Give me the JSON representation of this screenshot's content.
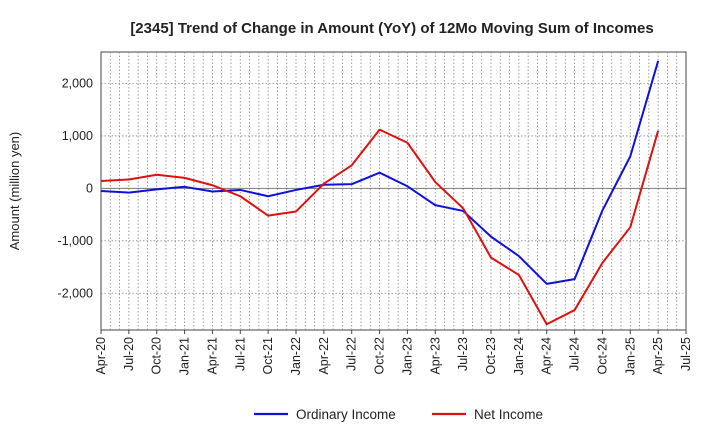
{
  "chart_data": {
    "type": "line",
    "title": "[2345]  Trend of Change in Amount (YoY) of 12Mo Moving Sum of Incomes",
    "xlabel": "",
    "ylabel": "Amount (million yen)",
    "ylim": [
      -2700,
      2600
    ],
    "y_ticks": [
      2000,
      1000,
      0,
      -1000,
      -2000
    ],
    "y_tick_labels": [
      "2,000",
      "1,000",
      "0",
      "-1,000",
      "-2,000"
    ],
    "x_tick_labels": [
      "Apr-20",
      "Jul-20",
      "Oct-20",
      "Jan-21",
      "Apr-21",
      "Jul-21",
      "Oct-21",
      "Jan-22",
      "Apr-22",
      "Jul-22",
      "Oct-22",
      "Jan-23",
      "Apr-23",
      "Jul-23",
      "Oct-23",
      "Jan-24",
      "Apr-24",
      "Jul-24",
      "Oct-24",
      "Jan-25",
      "Apr-25",
      "Jul-25"
    ],
    "x": [
      "Apr-20",
      "Jul-20",
      "Oct-20",
      "Jan-21",
      "Apr-21",
      "Jul-21",
      "Oct-21",
      "Jan-22",
      "Apr-22",
      "Jul-22",
      "Oct-22",
      "Jan-23",
      "Apr-23",
      "Jul-23",
      "Oct-23",
      "Jan-24",
      "Apr-24",
      "Jul-24",
      "Oct-24",
      "Jan-25",
      "Apr-25"
    ],
    "series": [
      {
        "name": "Ordinary Income",
        "color": "#1010dd",
        "values": [
          -50,
          -80,
          -20,
          30,
          -60,
          -30,
          -150,
          -30,
          70,
          80,
          300,
          40,
          -320,
          -430,
          -920,
          -1290,
          -1820,
          -1730,
          -420,
          610,
          2430
        ]
      },
      {
        "name": "Net Income",
        "color": "#e01010",
        "values": [
          140,
          170,
          260,
          200,
          60,
          -150,
          -520,
          -440,
          90,
          440,
          1120,
          870,
          120,
          -380,
          -1320,
          -1650,
          -2590,
          -2320,
          -1420,
          -740,
          1100
        ]
      }
    ],
    "legend": "bottom-center",
    "grid": true
  }
}
